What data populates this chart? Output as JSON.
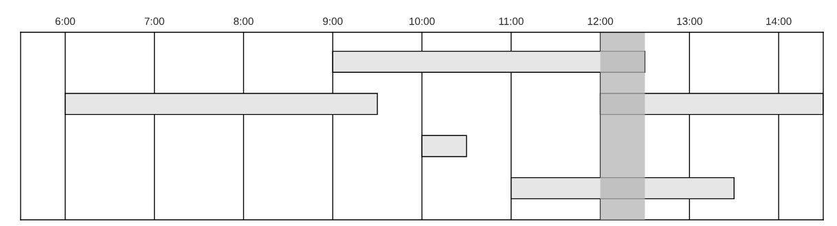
{
  "chart_data": {
    "type": "bar",
    "orientation": "horizontal",
    "categories": [
      null,
      null,
      null,
      null
    ],
    "series": [
      {
        "color": "#e6e6e6",
        "values": [
          3.5,
          3.5,
          0.5,
          2.5
        ],
        "base": [
          9,
          6,
          10,
          11
        ]
      },
      {
        "color": "#e6e6e6",
        "values": [
          null,
          2.5,
          null,
          null
        ],
        "base": [
          null,
          12,
          null,
          null
        ]
      }
    ],
    "xlim": [
      5.5,
      14.5
    ],
    "xticks": [
      {
        "value": 6,
        "label": "6:00"
      },
      {
        "value": 7,
        "label": "7:00"
      },
      {
        "value": 8,
        "label": "8:00"
      },
      {
        "value": 9,
        "label": "9:00"
      },
      {
        "value": 10,
        "label": "10:00"
      },
      {
        "value": 11,
        "label": "11:00"
      },
      {
        "value": 12,
        "label": "12:00"
      },
      {
        "value": 13,
        "label": "13:00"
      },
      {
        "value": 14,
        "label": "14:00"
      }
    ],
    "tick_labels": "x",
    "grid": "x",
    "bands": [
      {
        "axis": "x",
        "from": 12,
        "to": 12.5,
        "color": "#b4b4b4"
      }
    ]
  }
}
